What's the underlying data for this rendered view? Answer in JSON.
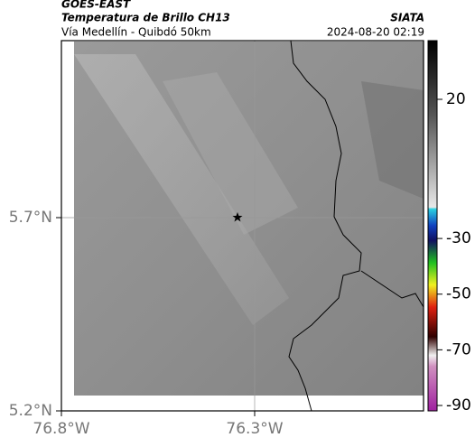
{
  "header": {
    "source": "GOES-EAST",
    "product": "Temperatura de Brillo CH13",
    "region": "Vía Medellín - Quibdó 50km",
    "agency": "SIATA",
    "timestamp": "2024-08-20 02:19"
  },
  "map": {
    "lat_ticks": [
      {
        "value": 5.7,
        "label": "5.7°N"
      },
      {
        "value": 5.2,
        "label": "5.2°N"
      }
    ],
    "lon_ticks": [
      {
        "value": -76.8,
        "label": "76.8°W"
      },
      {
        "value": -76.3,
        "label": "76.3°W"
      }
    ]
  },
  "colorbar": {
    "ticks": [
      20,
      -30,
      -50,
      -70,
      -90
    ]
  }
}
